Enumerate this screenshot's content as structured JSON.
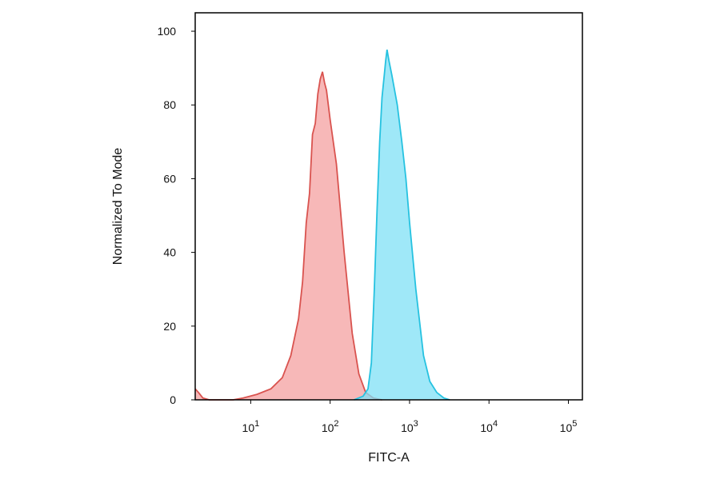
{
  "chart_data": {
    "type": "area",
    "xlabel": "FITC-A",
    "ylabel": "Normalized To Mode",
    "xscale": "log",
    "xlim": [
      2,
      150000
    ],
    "ylim": [
      0,
      105
    ],
    "grid": false,
    "legend": "none",
    "x_ticks": [
      {
        "base": "10",
        "exp": "1",
        "value": 10
      },
      {
        "base": "10",
        "exp": "2",
        "value": 100
      },
      {
        "base": "10",
        "exp": "3",
        "value": 1000
      },
      {
        "base": "10",
        "exp": "4",
        "value": 10000
      },
      {
        "base": "10",
        "exp": "5",
        "value": 100000
      }
    ],
    "y_ticks": [
      "0",
      "20",
      "40",
      "60",
      "80",
      "100"
    ],
    "series": [
      {
        "color": "#d9534f",
        "fill": "#f4a0a0",
        "points": [
          [
            2,
            3
          ],
          [
            2.2,
            2
          ],
          [
            2.5,
            0.5
          ],
          [
            3,
            0
          ],
          [
            6,
            0
          ],
          [
            8,
            0.5
          ],
          [
            12,
            1.5
          ],
          [
            18,
            3
          ],
          [
            25,
            6
          ],
          [
            32,
            12
          ],
          [
            40,
            22
          ],
          [
            45,
            32
          ],
          [
            50,
            48
          ],
          [
            55,
            56
          ],
          [
            60,
            72
          ],
          [
            65,
            75
          ],
          [
            70,
            83
          ],
          [
            75,
            87
          ],
          [
            80,
            89
          ],
          [
            85,
            86
          ],
          [
            90,
            84
          ],
          [
            100,
            76
          ],
          [
            120,
            64
          ],
          [
            150,
            40
          ],
          [
            190,
            18
          ],
          [
            230,
            7
          ],
          [
            280,
            2
          ],
          [
            350,
            0.5
          ],
          [
            450,
            0
          ]
        ]
      },
      {
        "color": "#26c2e0",
        "fill": "#7fe0f5",
        "points": [
          [
            200,
            0
          ],
          [
            260,
            1
          ],
          [
            300,
            3
          ],
          [
            330,
            10
          ],
          [
            360,
            30
          ],
          [
            390,
            52
          ],
          [
            420,
            70
          ],
          [
            450,
            82
          ],
          [
            480,
            88
          ],
          [
            500,
            92
          ],
          [
            520,
            95
          ],
          [
            550,
            92
          ],
          [
            600,
            88
          ],
          [
            700,
            80
          ],
          [
            800,
            70
          ],
          [
            900,
            60
          ],
          [
            1000,
            48
          ],
          [
            1200,
            30
          ],
          [
            1500,
            12
          ],
          [
            1800,
            5
          ],
          [
            2200,
            2
          ],
          [
            2700,
            0.5
          ],
          [
            3200,
            0
          ]
        ]
      }
    ]
  }
}
